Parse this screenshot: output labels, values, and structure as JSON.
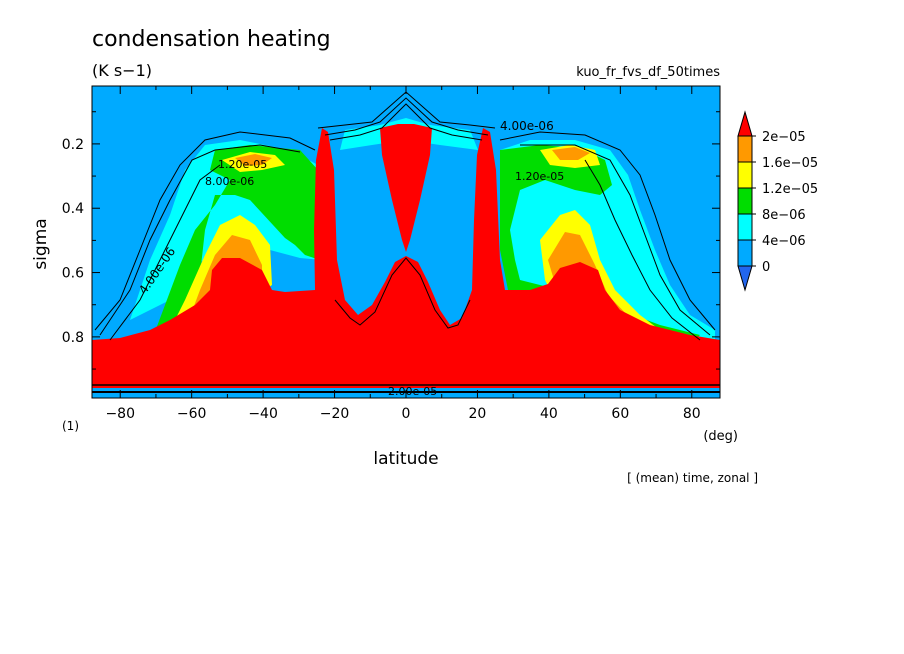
{
  "chart_data": {
    "type": "contour",
    "title": "condensation heating",
    "units": "(K s−1)",
    "run_name": "kuo_fr_fvs_df_50times",
    "xlabel": "latitude",
    "ylabel": "sigma",
    "x_unit": "(deg)",
    "panel_index": "(1)",
    "footer": "[ (mean) time, zonal ]",
    "x_ticks": [
      "−80",
      "−60",
      "−40",
      "−20",
      "0",
      "20",
      "40",
      "60",
      "80"
    ],
    "y_ticks": [
      "0.2",
      "0.4",
      "0.6",
      "0.8"
    ],
    "xlim": [
      -87.9,
      87.9
    ],
    "ylim": [
      0.02,
      0.99
    ],
    "y_inverted": true,
    "colorbar": {
      "labels": [
        "2e−05",
        "1.6e−05",
        "1.2e−05",
        "8e−06",
        "4e−06",
        "0"
      ],
      "levels": [
        0,
        4e-06,
        8e-06,
        1.2e-05,
        1.6e-05,
        2e-05
      ],
      "colors": {
        "below0": "#2266ee",
        "0_4e-6": "#00aaff",
        "4e-6_8e-6": "#00ffff",
        "8e-6_1.2e-5": "#00dd00",
        "1.2e-5_1.6e-5": "#ffff00",
        "1.6e-5_2e-5": "#ff9900",
        "above2e-5": "#ff0000"
      }
    },
    "contour_labels": [
      {
        "text": "4.00e-06",
        "lat": 48,
        "sigma": 0.12
      },
      {
        "text": "4.00e-06",
        "lat": -72,
        "sigma": 0.58
      },
      {
        "text": "1.20e-05",
        "lat": -50,
        "sigma": 0.26
      },
      {
        "text": "8.00e-06",
        "lat": -53,
        "sigma": 0.31
      },
      {
        "text": "1.20e-05",
        "lat": 38,
        "sigma": 0.3
      },
      {
        "text": "2.00e-05",
        "lat": 0,
        "sigma": 0.96
      }
    ]
  }
}
